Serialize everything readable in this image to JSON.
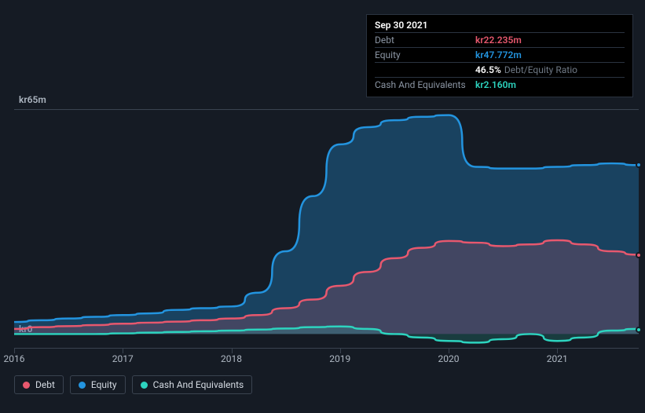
{
  "chart": {
    "type": "area",
    "background_color": "#151b24",
    "grid_color": "#3a4350",
    "ylim": [
      -4,
      65
    ],
    "ylabels": [
      {
        "v": 65,
        "text": "kr65m"
      },
      {
        "v": 0,
        "text": "kr0"
      }
    ],
    "xticks": [
      "2016",
      "2017",
      "2018",
      "2019",
      "2020",
      "2021"
    ],
    "x_count": 24,
    "series": [
      {
        "name": "Equity",
        "color": "#2394df",
        "fill": "rgba(35,148,223,0.32)",
        "values": [
          3.5,
          4,
          4.5,
          5,
          5.5,
          6,
          7,
          7.5,
          8,
          12,
          24,
          40,
          55,
          60,
          62,
          63,
          63.5,
          48.5,
          48,
          48,
          48.5,
          49,
          49.5,
          49
        ],
        "dot": true
      },
      {
        "name": "Debt",
        "color": "#e7586e",
        "fill": "rgba(231,88,110,0.20)",
        "values": [
          1.5,
          2,
          2.3,
          2.6,
          3,
          3.3,
          3.6,
          4,
          4.5,
          5.5,
          7.5,
          10,
          14,
          18,
          22,
          25,
          27,
          26.5,
          25.5,
          26,
          27.2,
          26,
          24,
          23
        ],
        "dot": true
      },
      {
        "name": "Cash And Equivalents",
        "color": "#2dd4bf",
        "fill": "rgba(45,212,191,0.18)",
        "values": [
          0,
          0,
          0,
          0,
          0.2,
          0.4,
          0.6,
          0.8,
          1,
          1.3,
          1.6,
          2,
          2.2,
          1.5,
          0,
          -1,
          -2,
          -2.5,
          -1.5,
          0,
          -2,
          -1,
          1,
          1.5
        ],
        "dot": true
      }
    ]
  },
  "tooltip": {
    "date": "Sep 30 2021",
    "rows": [
      {
        "label": "Debt",
        "value": "kr22.235m",
        "color": "#e7586e"
      },
      {
        "label": "Equity",
        "value": "kr47.772m",
        "color": "#2394df"
      },
      {
        "label": "",
        "value": "46.5%",
        "extra": "Debt/Equity Ratio",
        "color": "#ffffff"
      },
      {
        "label": "Cash And Equivalents",
        "value": "kr2.160m",
        "color": "#2dd4bf"
      }
    ]
  },
  "legend": [
    {
      "label": "Debt",
      "color": "#e7586e"
    },
    {
      "label": "Equity",
      "color": "#2394df"
    },
    {
      "label": "Cash And Equivalents",
      "color": "#2dd4bf"
    }
  ]
}
